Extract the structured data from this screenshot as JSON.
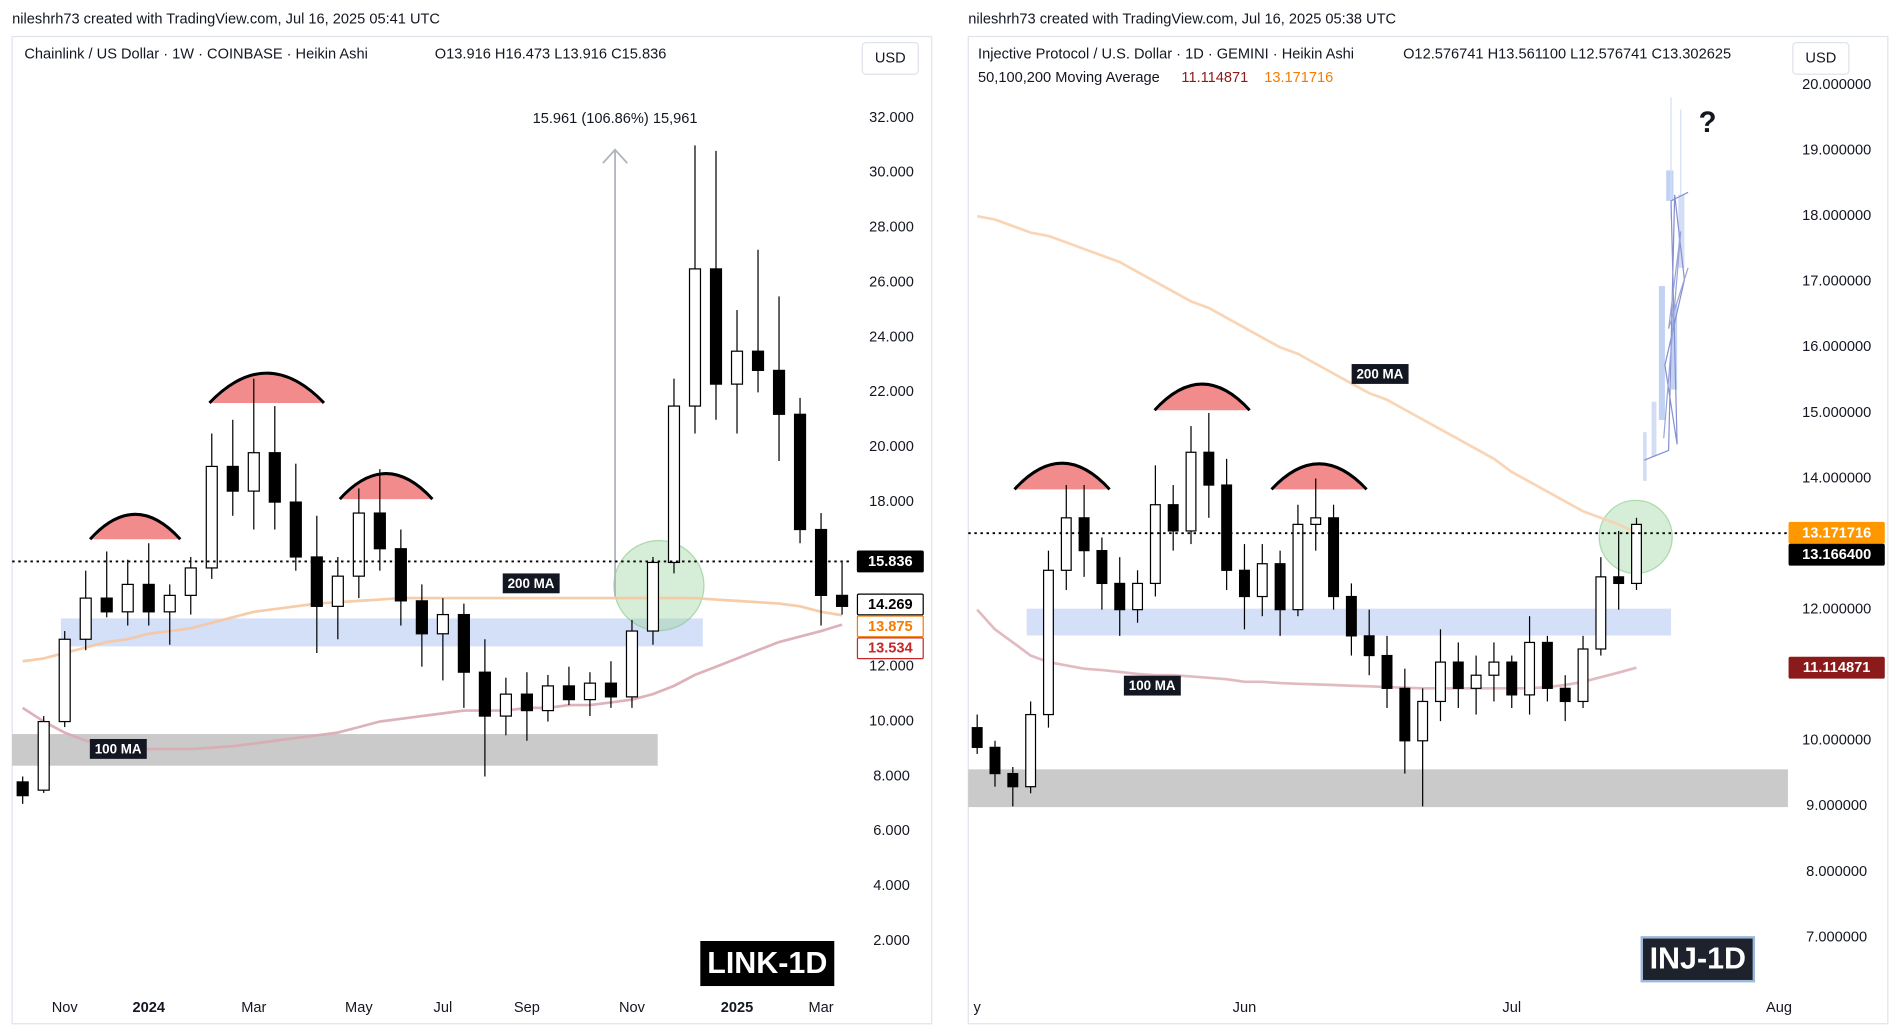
{
  "chart_data": [
    {
      "type": "candlestick",
      "attribution": "nileshrh73 created with TradingView.com, Jul 16, 2025 05:41 UTC",
      "title": "Chainlink / US Dollar · 1W · COINBASE · Heikin Ashi",
      "ohlc_legend": "O13.916 H16.473 L13.916 C15.836",
      "currency": "USD",
      "badge": "LINK-1D",
      "measure_label": "15.961 (106.86%) 15,961",
      "categories": [
        null,
        null,
        "Nov",
        null,
        null,
        null,
        "2024",
        null,
        null,
        null,
        null,
        "Mar",
        null,
        null,
        null,
        null,
        "May",
        null,
        null,
        null,
        "Jul",
        null,
        null,
        null,
        "Sep",
        null,
        null,
        null,
        null,
        "Nov",
        null,
        null,
        null,
        null,
        "2025",
        null,
        null,
        null,
        "Mar",
        null
      ],
      "open": [
        7.8,
        7.5,
        10.0,
        13.0,
        14.5,
        14.0,
        15.0,
        14.0,
        14.6,
        15.6,
        19.3,
        18.4,
        19.8,
        18.0,
        16.0,
        14.2,
        15.3,
        17.6,
        16.3,
        14.4,
        13.2,
        13.9,
        11.8,
        10.2,
        11.0,
        10.4,
        11.3,
        10.8,
        11.4,
        10.9,
        13.3,
        15.8,
        21.5,
        26.5,
        22.3,
        23.5,
        22.8,
        21.2,
        17.0,
        14.6
      ],
      "high": [
        8.0,
        10.2,
        13.3,
        15.5,
        16.2,
        15.9,
        16.5,
        15.0,
        16.0,
        20.5,
        21.0,
        22.5,
        21.5,
        19.4,
        17.5,
        16.0,
        18.5,
        19.2,
        17.0,
        15.0,
        14.5,
        14.3,
        13.0,
        11.6,
        11.8,
        11.7,
        12.0,
        11.8,
        12.2,
        13.7,
        16.0,
        22.5,
        31.0,
        30.8,
        25.0,
        27.2,
        25.5,
        21.8,
        17.6,
        15.8
      ],
      "low": [
        7.0,
        7.4,
        9.8,
        12.6,
        13.8,
        13.5,
        13.5,
        12.8,
        13.9,
        15.2,
        17.5,
        17.0,
        17.0,
        15.5,
        12.5,
        13.0,
        14.5,
        15.5,
        13.5,
        12.0,
        11.5,
        10.5,
        8.0,
        9.5,
        9.3,
        10.0,
        10.6,
        10.2,
        10.5,
        10.5,
        12.8,
        15.4,
        20.5,
        21.0,
        20.5,
        22.0,
        19.5,
        16.5,
        13.5,
        13.9
      ],
      "close": [
        7.3,
        10.0,
        13.0,
        14.5,
        14.0,
        15.0,
        14.0,
        14.6,
        15.6,
        19.3,
        18.4,
        19.8,
        18.0,
        16.0,
        14.2,
        15.3,
        17.6,
        16.3,
        14.4,
        13.2,
        13.9,
        11.8,
        10.2,
        11.0,
        10.4,
        11.3,
        10.8,
        11.4,
        10.9,
        13.3,
        15.8,
        21.5,
        26.5,
        22.3,
        23.5,
        22.8,
        21.2,
        17.0,
        14.6,
        14.2
      ],
      "up_color": "#ffffff",
      "down_color": "#000000",
      "series": [
        {
          "name": "200 MA",
          "color": "#f6c7a0",
          "values": [
            12.2,
            12.3,
            12.5,
            12.7,
            12.9,
            13.0,
            13.2,
            13.3,
            13.4,
            13.6,
            13.8,
            14.0,
            14.1,
            14.2,
            14.3,
            14.35,
            14.4,
            14.45,
            14.5,
            14.5,
            14.5,
            14.5,
            14.5,
            14.5,
            14.5,
            14.5,
            14.5,
            14.5,
            14.5,
            14.5,
            14.5,
            14.5,
            14.5,
            14.45,
            14.4,
            14.35,
            14.3,
            14.2,
            14.0,
            13.875
          ]
        },
        {
          "name": "100 MA",
          "color": "#d9aab3",
          "values": [
            10.5,
            10.0,
            9.6,
            9.3,
            9.2,
            9.1,
            9.0,
            9.0,
            9.0,
            9.05,
            9.1,
            9.2,
            9.3,
            9.4,
            9.5,
            9.6,
            9.8,
            10.0,
            10.1,
            10.2,
            10.3,
            10.4,
            10.4,
            10.4,
            10.5,
            10.5,
            10.6,
            10.6,
            10.7,
            10.8,
            11.0,
            11.3,
            11.7,
            12.0,
            12.3,
            12.6,
            12.9,
            13.1,
            13.3,
            13.534
          ]
        }
      ],
      "price_badges": [
        {
          "value": 15.836,
          "color": "#000000",
          "text_color": "#ffffff",
          "line": "dotted"
        },
        {
          "value": 14.269,
          "color": "#ffffff",
          "text_color": "#000000"
        },
        {
          "value": 13.875,
          "color": "#ffffff",
          "text_color": "#f57c00"
        },
        {
          "value": 13.534,
          "color": "#ffffff",
          "text_color": "#c62828"
        }
      ],
      "ylim": [
        0.36,
        34.97
      ],
      "yticks": [
        {
          "value": 2,
          "label": "2.000"
        },
        {
          "value": 4,
          "label": "4.000"
        },
        {
          "value": 6,
          "label": "6.000"
        },
        {
          "value": 8,
          "label": "8.000"
        },
        {
          "value": 10,
          "label": "10.000"
        },
        {
          "value": 12,
          "label": "12.000"
        },
        {
          "value": 18,
          "label": "18.000"
        },
        {
          "value": 20,
          "label": "20.000"
        },
        {
          "value": 22,
          "label": "22.000"
        },
        {
          "value": 24,
          "label": "24.000"
        },
        {
          "value": 26,
          "label": "26.000"
        },
        {
          "value": 28,
          "label": "28.000"
        },
        {
          "value": 30,
          "label": "30.000"
        },
        {
          "value": 32,
          "label": "32.000"
        }
      ],
      "grid": false
    },
    {
      "type": "candlestick",
      "attribution": "nileshrh73 created with TradingView.com, Jul 16, 2025 05:38 UTC",
      "title": "Injective Protocol / U.S. Dollar · 1D · GEMINI · Heikin Ashi",
      "ohlc_legend": "O12.576741 H13.561100 L12.576741 C13.302625",
      "ma_legend": "50,100,200 Moving Average",
      "currency": "USD",
      "badge": "INJ-1D",
      "question_mark": "?",
      "categories": [
        "y",
        null,
        null,
        null,
        null,
        null,
        null,
        null,
        null,
        null,
        null,
        null,
        null,
        null,
        null,
        "Jun",
        null,
        null,
        null,
        null,
        null,
        null,
        null,
        null,
        null,
        null,
        null,
        null,
        null,
        null,
        "Jul",
        null,
        null,
        null,
        null,
        null,
        null,
        null,
        null,
        null,
        null,
        null,
        null,
        null,
        null,
        "Aug"
      ],
      "open": [
        10.2,
        9.9,
        9.5,
        9.3,
        10.4,
        12.6,
        13.4,
        12.9,
        12.4,
        12.0,
        12.4,
        13.6,
        13.2,
        14.4,
        13.9,
        12.6,
        12.2,
        12.7,
        12.0,
        13.3,
        13.4,
        12.2,
        11.6,
        11.3,
        10.8,
        10.0,
        10.6,
        11.2,
        10.8,
        11.0,
        11.2,
        10.7,
        11.5,
        10.8,
        10.6,
        11.4,
        12.5,
        12.4,
        null,
        null,
        null,
        null,
        null,
        null,
        null,
        null
      ],
      "high": [
        10.4,
        10.0,
        9.6,
        10.6,
        12.9,
        13.9,
        13.9,
        13.1,
        12.8,
        12.6,
        14.2,
        13.9,
        14.8,
        15.0,
        14.3,
        13.0,
        13.0,
        12.9,
        13.6,
        14.0,
        13.6,
        12.4,
        12.0,
        11.6,
        11.1,
        10.8,
        11.7,
        11.5,
        11.3,
        11.5,
        11.3,
        11.9,
        11.6,
        11.0,
        11.6,
        12.8,
        13.2,
        13.4,
        null,
        null,
        null,
        null,
        null,
        null,
        null,
        null
      ],
      "low": [
        9.8,
        9.3,
        9.0,
        9.2,
        10.2,
        12.3,
        12.5,
        12.0,
        11.6,
        11.8,
        12.2,
        12.9,
        13.0,
        13.4,
        12.3,
        11.7,
        11.9,
        11.6,
        11.9,
        12.9,
        12.0,
        11.3,
        11.0,
        10.5,
        9.5,
        9.0,
        10.3,
        10.5,
        10.4,
        10.6,
        10.5,
        10.4,
        10.6,
        10.3,
        10.5,
        11.3,
        12.0,
        12.3,
        null,
        null,
        null,
        null,
        null,
        null,
        null,
        null
      ],
      "close": [
        9.9,
        9.5,
        9.3,
        10.4,
        12.6,
        13.4,
        12.9,
        12.4,
        12.0,
        12.4,
        13.6,
        13.2,
        14.4,
        13.9,
        12.6,
        12.2,
        12.7,
        12.0,
        13.3,
        13.4,
        12.2,
        11.6,
        11.3,
        10.8,
        10.0,
        10.6,
        11.2,
        10.8,
        11.0,
        11.2,
        10.7,
        11.5,
        10.8,
        10.6,
        11.4,
        12.5,
        12.4,
        13.3,
        null,
        null,
        null,
        null,
        null,
        null,
        null,
        null
      ],
      "up_color": "#ffffff",
      "down_color": "#000000",
      "series": [
        {
          "name": "200 MA",
          "color": "#f8d0ae",
          "values": [
            18.0,
            17.95,
            17.85,
            17.75,
            17.7,
            17.6,
            17.5,
            17.4,
            17.3,
            17.15,
            17.0,
            16.85,
            16.7,
            16.6,
            16.45,
            16.3,
            16.15,
            16.0,
            15.9,
            15.75,
            15.6,
            15.45,
            15.3,
            15.2,
            15.05,
            14.9,
            14.75,
            14.6,
            14.45,
            14.3,
            14.1,
            13.95,
            13.8,
            13.65,
            13.5,
            13.4,
            13.3,
            13.171716,
            null,
            null,
            null,
            null,
            null,
            null,
            null,
            null
          ]
        },
        {
          "name": "100 MA",
          "color": "#dfb4ba",
          "values": [
            12.0,
            11.7,
            11.5,
            11.3,
            11.2,
            11.15,
            11.1,
            11.08,
            11.05,
            11.02,
            11.0,
            11.0,
            10.98,
            10.96,
            10.94,
            10.9,
            10.9,
            10.88,
            10.87,
            10.86,
            10.85,
            10.84,
            10.83,
            10.82,
            10.81,
            10.8,
            10.8,
            10.8,
            10.8,
            10.8,
            10.8,
            10.8,
            10.82,
            10.85,
            10.9,
            10.97,
            11.04,
            11.114871,
            null,
            null,
            null,
            null,
            null,
            null,
            null,
            null
          ]
        }
      ],
      "price_badges": [
        {
          "value": 13.171716,
          "color": "#ff9800",
          "text_color": "#ffffff"
        },
        {
          "value": 13.1664,
          "label": "13.166400",
          "color": "#000000",
          "text_color": "#ffffff",
          "line": "dotted"
        },
        {
          "value": 11.114871,
          "color": "#8b1a1a",
          "text_color": "#ffffff"
        }
      ],
      "ylim": [
        6.26,
        20.74
      ],
      "yticks": [
        {
          "value": 7,
          "label": "7.000000"
        },
        {
          "value": 8,
          "label": "8.000000"
        },
        {
          "value": 9,
          "label": "9.000000"
        },
        {
          "value": 10,
          "label": "10.000000"
        },
        {
          "value": 12,
          "label": "12.000000"
        },
        {
          "value": 14,
          "label": "14.000000"
        },
        {
          "value": 15,
          "label": "15.000000"
        },
        {
          "value": 16,
          "label": "16.000000"
        },
        {
          "value": 17,
          "label": "17.000000"
        },
        {
          "value": 18,
          "label": "18.000000"
        },
        {
          "value": 19,
          "label": "19.000000"
        },
        {
          "value": 20,
          "label": "20.000000"
        }
      ],
      "grid": false
    }
  ]
}
